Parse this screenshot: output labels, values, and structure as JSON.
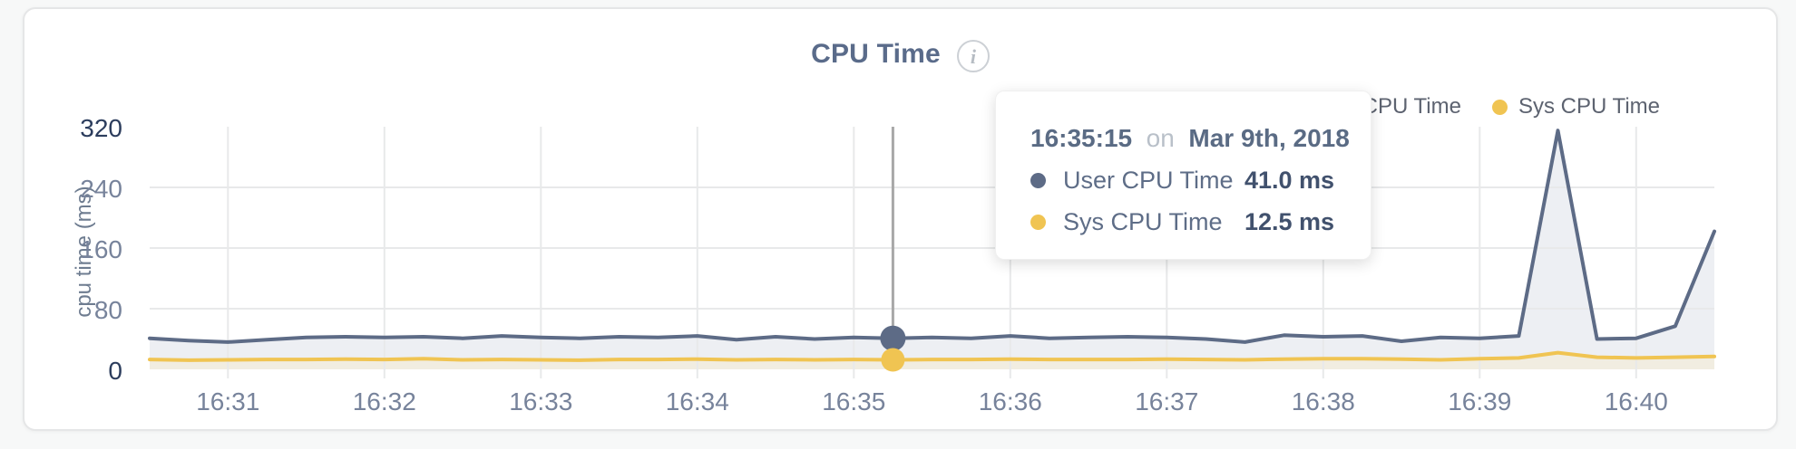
{
  "card": {
    "title": "CPU Time",
    "info_icon": "i"
  },
  "y_axis": {
    "label": "cpu time (ms)"
  },
  "legend": {
    "items": [
      {
        "label": "User CPU Time",
        "color": "#5d6b86"
      },
      {
        "label": "Sys CPU Time",
        "color": "#f0c452"
      }
    ]
  },
  "tooltip": {
    "time": "16:35:15",
    "connector": "on",
    "date": "Mar 9th, 2018",
    "rows": [
      {
        "label": "User CPU Time",
        "value": "41.0 ms",
        "color": "#5d6b86"
      },
      {
        "label": "Sys CPU Time",
        "value": "12.5 ms",
        "color": "#f0c452"
      }
    ]
  },
  "chart_data": {
    "type": "area",
    "title": "CPU Time",
    "ylabel": "cpu time (ms)",
    "ylim": [
      0,
      320
    ],
    "y_ticks": [
      320,
      240,
      160,
      80,
      0
    ],
    "y_gridlines": [
      240,
      160,
      80
    ],
    "x_ticks": [
      "16:31",
      "16:32",
      "16:33",
      "16:34",
      "16:35",
      "16:36",
      "16:37",
      "16:38",
      "16:39",
      "16:40"
    ],
    "time_start": "16:30:30",
    "time_end": "16:40:30",
    "grid": true,
    "legend_position": "top-right",
    "times": [
      "16:30:30",
      "16:30:45",
      "16:31:00",
      "16:31:15",
      "16:31:30",
      "16:31:45",
      "16:32:00",
      "16:32:15",
      "16:32:30",
      "16:32:45",
      "16:33:00",
      "16:33:15",
      "16:33:30",
      "16:33:45",
      "16:34:00",
      "16:34:15",
      "16:34:30",
      "16:34:45",
      "16:35:00",
      "16:35:15",
      "16:35:30",
      "16:35:45",
      "16:36:00",
      "16:36:15",
      "16:36:30",
      "16:36:45",
      "16:37:00",
      "16:37:15",
      "16:37:30",
      "16:37:45",
      "16:38:00",
      "16:38:15",
      "16:38:30",
      "16:38:45",
      "16:39:00",
      "16:39:15",
      "16:39:30",
      "16:39:45",
      "16:40:00",
      "16:40:15",
      "16:40:30"
    ],
    "series": [
      {
        "name": "User CPU Time",
        "color": "#5d6b86",
        "fill": "#edeff3",
        "unit": "ms",
        "values": [
          41,
          38,
          36,
          39,
          42,
          43,
          42,
          43,
          41,
          44,
          42,
          41,
          43,
          42,
          44,
          39,
          43,
          40,
          42,
          41,
          42,
          41,
          44,
          41,
          42,
          43,
          42,
          40,
          36,
          45,
          43,
          44,
          37,
          42,
          41,
          44,
          315,
          40,
          41,
          57,
          182
        ]
      },
      {
        "name": "Sys CPU Time",
        "color": "#f0c452",
        "fill": "#f1ede1",
        "unit": "ms",
        "values": [
          13,
          12,
          12.5,
          13,
          13,
          13.5,
          13,
          14,
          12.5,
          13,
          12.5,
          12,
          13,
          13,
          13.5,
          12.5,
          13,
          12.5,
          13,
          12.5,
          13,
          13,
          13.5,
          13,
          13,
          13,
          13.5,
          13,
          12.5,
          13.5,
          14,
          14,
          13.5,
          12.5,
          14,
          15,
          22,
          16,
          15,
          16,
          17
        ]
      }
    ],
    "hover": {
      "time": "16:35:15",
      "values": [
        41.0,
        12.5
      ],
      "line_color": "#a8a8a8"
    },
    "grid_color": "#e8e9ea"
  }
}
